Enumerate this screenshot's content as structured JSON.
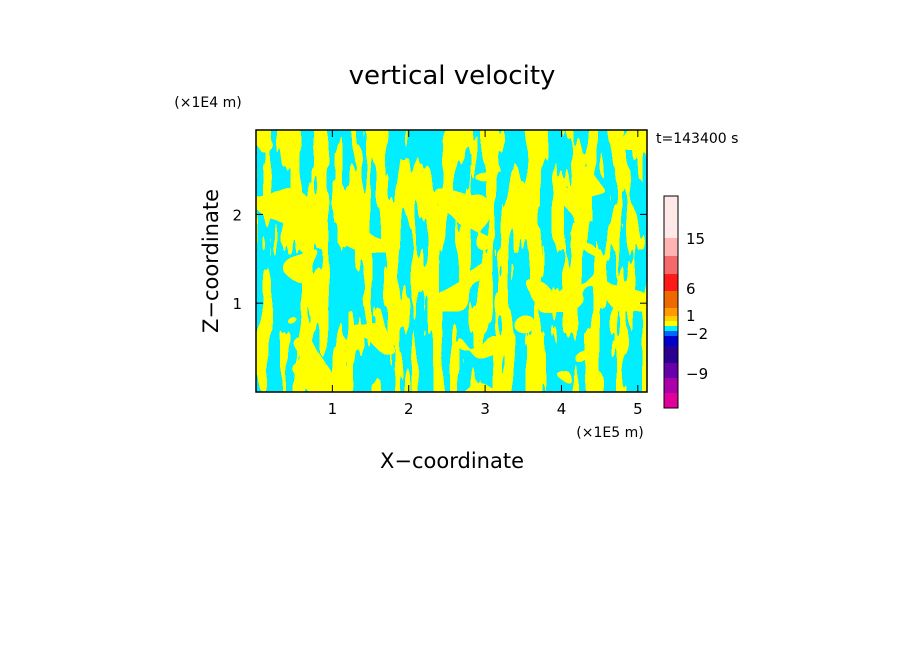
{
  "chart_data": {
    "type": "heatmap",
    "title": "vertical velocity",
    "xlabel": "X−coordinate",
    "ylabel": "Z−coordinate",
    "x_unit": "(×1E5 m)",
    "y_unit": "(×1E4 m)",
    "time_label": "t=143400 s",
    "xlim": [
      0,
      5.12
    ],
    "ylim": [
      0,
      2.95
    ],
    "x_ticks": [
      1,
      2,
      3,
      4,
      5
    ],
    "y_ticks": [
      1,
      2
    ],
    "x_tick_labels": [
      "1",
      "2",
      "3",
      "4",
      "5"
    ],
    "y_tick_labels": [
      "1",
      "2"
    ],
    "colors": {
      "updraft": "#ffff00",
      "downdraft": "#00eeff"
    },
    "colorbar": {
      "bins": [
        {
          "color": "#ffe8e8"
        },
        {
          "color": "#ffb3b3"
        },
        {
          "color": "#f46a6a"
        },
        {
          "color": "#ff1a1a"
        },
        {
          "color": "#ee6a00"
        },
        {
          "color": "#ff9a00"
        },
        {
          "color": "#ffd000"
        },
        {
          "color": "#ffff00"
        },
        {
          "color": "#00eeff"
        },
        {
          "color": "#0066ff"
        },
        {
          "color": "#0000cc"
        },
        {
          "color": "#2a0090"
        },
        {
          "color": "#6600aa"
        },
        {
          "color": "#aa00aa"
        },
        {
          "color": "#e0009a"
        }
      ],
      "labels": [
        {
          "text": "15",
          "value": 15
        },
        {
          "text": "6",
          "value": 6
        },
        {
          "text": "1",
          "value": 1
        },
        {
          "text": "−2",
          "value": -2
        },
        {
          "text": "−9",
          "value": -9
        }
      ]
    }
  }
}
